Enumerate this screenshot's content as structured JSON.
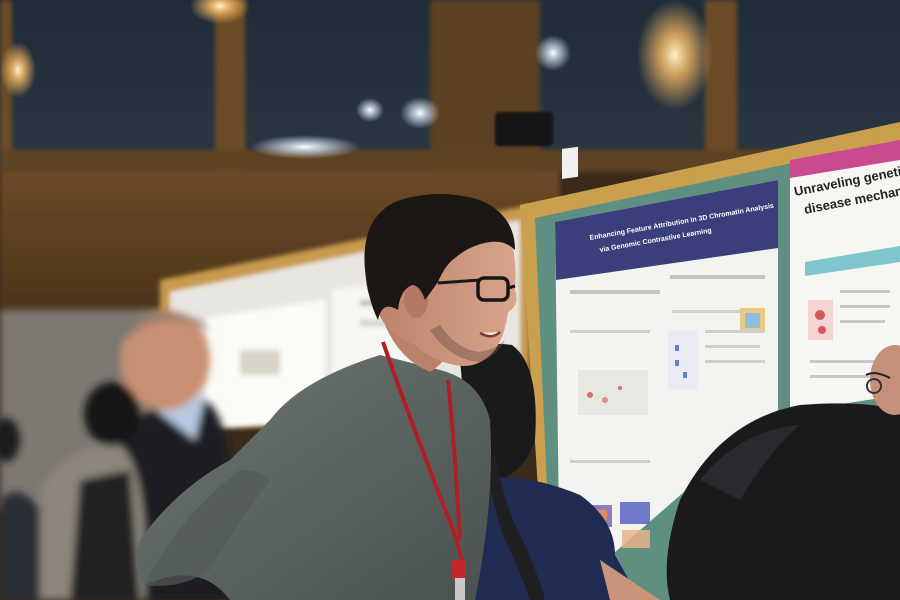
{
  "scene": {
    "posters": [
      {
        "title_line1": "Enhancing Feature Attribution in 3D Chromatin Analysis",
        "title_line2": "via Genomic Contrastive Learning"
      },
      {
        "title_line1": "Unraveling genetic ins",
        "title_line2": "disease mechanisms f"
      }
    ]
  }
}
